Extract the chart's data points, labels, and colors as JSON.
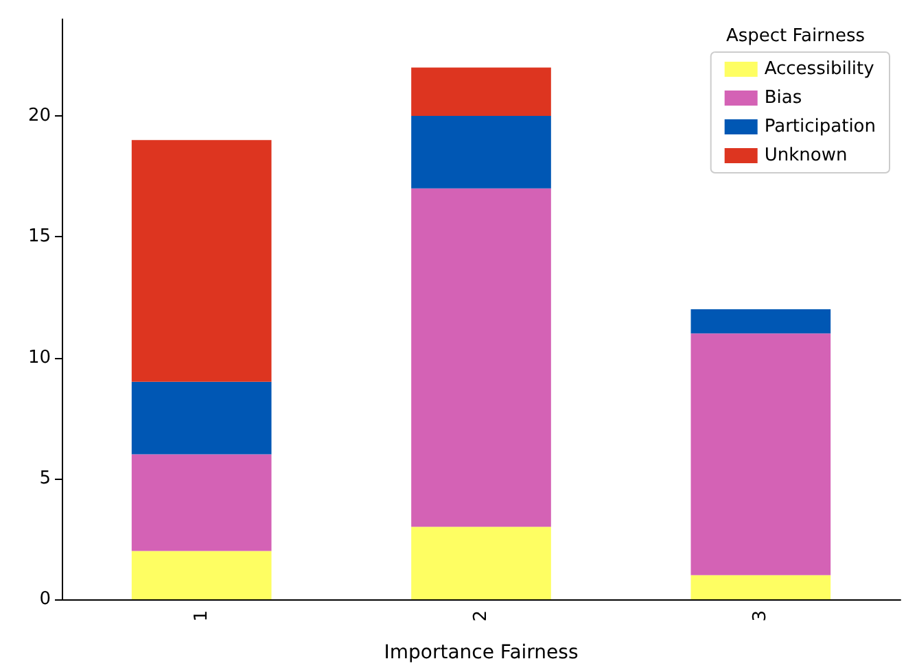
{
  "chart_data": {
    "type": "bar",
    "stacked": true,
    "xlabel": "Importance Fairness",
    "legend_title": "Aspect Fairness",
    "legend": "top right",
    "grid": false,
    "categories": [
      "1",
      "2",
      "3"
    ],
    "series": [
      {
        "name": "Accessibility",
        "color": "#fefe62",
        "values": [
          2,
          3,
          1
        ]
      },
      {
        "name": "Bias",
        "color": "#d462b5",
        "values": [
          4,
          14,
          10
        ]
      },
      {
        "name": "Participation",
        "color": "#0057b4",
        "values": [
          3,
          3,
          1
        ]
      },
      {
        "name": "Unknown",
        "color": "#dd3520",
        "values": [
          10,
          2,
          0
        ]
      }
    ],
    "ylim": [
      0,
      24
    ],
    "yticks": [
      0,
      5,
      10,
      15,
      20
    ]
  }
}
